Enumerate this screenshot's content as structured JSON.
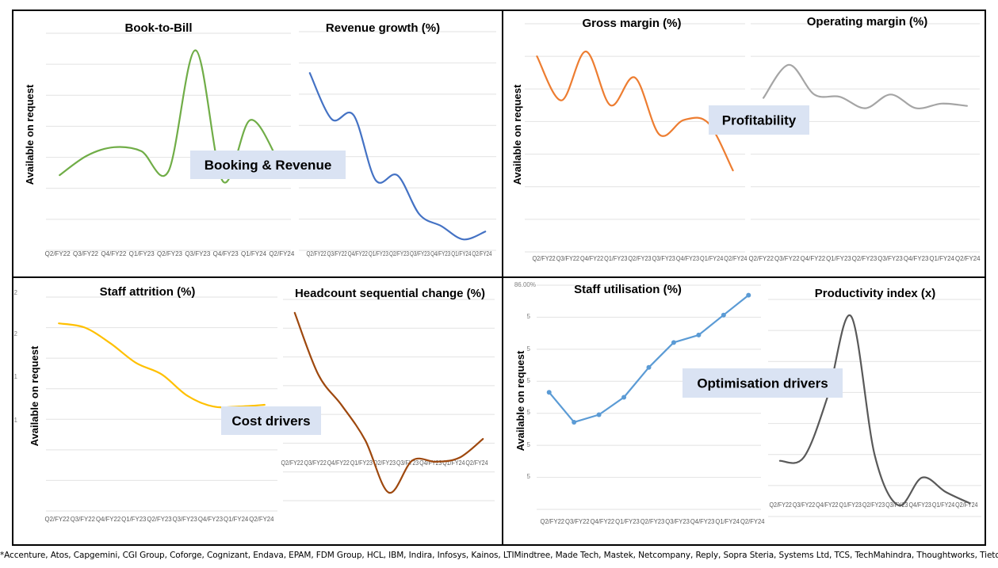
{
  "y_axis_note": "Available on request",
  "quadrant_labels": {
    "booking_revenue": "Booking & Revenue",
    "profitability": "Profitability",
    "cost_drivers": "Cost drivers",
    "optimisation_drivers": "Optimisation drivers"
  },
  "partial_tick_labels": {
    "staff_attrition_1": "2",
    "staff_attrition_2": "2",
    "staff_attrition_3": "1",
    "staff_attrition_4": "1",
    "staff_utilisation_top": "86.00%",
    "staff_utilisation_1": "5",
    "staff_utilisation_2": "5",
    "staff_utilisation_3": "5",
    "staff_utilisation_4": "5",
    "staff_utilisation_5": "5",
    "staff_utilisation_6": "5"
  },
  "footnote": "*Accenture, Atos, Capgemini, CGI Group, Coforge, Cognizant, Endava, EPAM, FDM Group, HCL, IBM, Indira, Infosys, Kainos, LTIMindtree, Made Tech, Mastek, Netcompany, Reply, Sopra Steria, Systems Ltd, TCS, TechMahindra, Thoughtworks, Tietoevry, Wipro.",
  "chart_data": [
    {
      "id": "book_to_bill",
      "type": "line",
      "title": "Book-to-Bill",
      "smooth": true,
      "markers": false,
      "color": "#70AD47",
      "categories": [
        "Q2/FY22",
        "Q3/FY22",
        "Q4/FY22",
        "Q1/FY23",
        "Q2/FY23",
        "Q3/FY23",
        "Q4/FY23",
        "Q1/FY24",
        "Q2/FY24"
      ],
      "values": [
        0.37,
        0.62,
        0.73,
        0.68,
        0.42,
        1.98,
        0.29,
        1.08,
        0.58
      ],
      "ylim": [
        -0.6,
        2.2
      ],
      "grid": true,
      "y_ticks_visible": false
    },
    {
      "id": "revenue_growth",
      "type": "line",
      "title": "Revenue growth (%)",
      "smooth": true,
      "markers": false,
      "color": "#4472C4",
      "categories": [
        "Q2/FY22",
        "Q3/FY22",
        "Q4/FY22",
        "Q1/FY23",
        "Q2/FY23",
        "Q3/FY23",
        "Q4/FY23",
        "Q1/FY24",
        "Q2/FY24"
      ],
      "values": [
        20.7,
        14.8,
        15.3,
        7.0,
        7.6,
        2.6,
        1.1,
        -0.6,
        0.4
      ],
      "ylim": [
        -2,
        26
      ],
      "grid": true,
      "y_ticks_visible": false
    },
    {
      "id": "gross_margin",
      "type": "line",
      "title": "Gross margin (%)",
      "smooth": true,
      "markers": false,
      "color": "#ED7D31",
      "categories": [
        "Q2/FY22",
        "Q3/FY22",
        "Q4/FY22",
        "Q1/FY23",
        "Q2/FY23",
        "Q3/FY23",
        "Q4/FY23",
        "Q1/FY24",
        "Q2/FY24"
      ],
      "values": [
        32.0,
        29.3,
        32.3,
        29.0,
        30.7,
        27.2,
        28.1,
        27.9,
        25.0
      ],
      "ylim": [
        20,
        34
      ],
      "grid": true,
      "y_ticks_visible": false
    },
    {
      "id": "operating_margin",
      "type": "line",
      "title": "Operating margin (%)",
      "smooth": true,
      "markers": false,
      "color": "#A5A5A5",
      "categories": [
        "Q2/FY22",
        "Q3/FY22",
        "Q4/FY22",
        "Q1/FY23",
        "Q2/FY23",
        "Q3/FY23",
        "Q4/FY23",
        "Q1/FY24",
        "Q2/FY24"
      ],
      "values": [
        13.5,
        16.4,
        13.8,
        13.6,
        12.6,
        13.8,
        12.6,
        13.0,
        12.8
      ],
      "ylim": [
        0,
        20
      ],
      "grid": true,
      "y_ticks_visible": false
    },
    {
      "id": "staff_attrition",
      "type": "line",
      "title": "Staff attrition (%)",
      "smooth": true,
      "markers": false,
      "color": "#FFC000",
      "categories": [
        "Q2/FY22",
        "Q3/FY22",
        "Q4/FY22",
        "Q1/FY23",
        "Q2/FY23",
        "Q3/FY23",
        "Q4/FY23",
        "Q1/FY24",
        "Q2/FY24"
      ],
      "values": [
        22.8,
        22.3,
        20.4,
        18.0,
        16.6,
        14.0,
        12.7,
        12.7,
        12.9
      ],
      "ylim": [
        0,
        26
      ],
      "grid": true,
      "y_ticks_visible": false
    },
    {
      "id": "headcount_change",
      "type": "line",
      "title": "Headcount sequential change (%)",
      "smooth": true,
      "markers": false,
      "color": "#9E480E",
      "categories": [
        "Q2/FY22",
        "Q3/FY22",
        "Q4/FY22",
        "Q1/FY23",
        "Q2/FY23",
        "Q3/FY23",
        "Q4/FY23",
        "Q1/FY24",
        "Q2/FY24"
      ],
      "values": [
        10.0,
        5.4,
        3.1,
        0.5,
        -3.4,
        -1.0,
        -1.1,
        -0.8,
        0.6
      ],
      "ylim": [
        -4,
        11
      ],
      "grid": true,
      "y_ticks_visible": false
    },
    {
      "id": "staff_utilisation",
      "type": "line",
      "title": "Staff utilisation (%)",
      "smooth": false,
      "markers": true,
      "color": "#5B9BD5",
      "categories": [
        "Q2/FY22",
        "Q3/FY22",
        "Q4/FY22",
        "Q1/FY23",
        "Q2/FY23",
        "Q3/FY23",
        "Q4/FY23",
        "Q1/FY24",
        "Q2/FY24"
      ],
      "values": [
        81.7,
        80.5,
        80.8,
        81.5,
        82.7,
        83.7,
        84.0,
        84.8,
        85.6
      ],
      "ylim": [
        77,
        86
      ],
      "grid": true,
      "y_ticks_visible": false
    },
    {
      "id": "productivity_index",
      "type": "line",
      "title": "Productivity index (x)",
      "smooth": true,
      "markers": false,
      "color": "#595959",
      "categories": [
        "Q2/FY22",
        "Q3/FY22",
        "Q4/FY22",
        "Q1/FY23",
        "Q2/FY23",
        "Q3/FY23",
        "Q4/FY23",
        "Q1/FY24",
        "Q2/FY24"
      ],
      "values": [
        0.4,
        0.43,
        0.97,
        1.7,
        0.45,
        0.0,
        0.25,
        0.12,
        0.02
      ],
      "ylim": [
        -0.1,
        1.85
      ],
      "grid": true,
      "y_ticks_visible": false
    }
  ]
}
